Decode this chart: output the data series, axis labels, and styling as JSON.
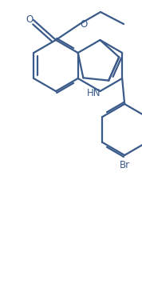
{
  "bg_color": "#ffffff",
  "line_color": "#3a5a8a",
  "line_width": 1.6,
  "figsize": [
    1.78,
    3.75
  ],
  "dpi": 100,
  "HN": "HN",
  "Br": "Br",
  "O1": "O",
  "O2": "O"
}
